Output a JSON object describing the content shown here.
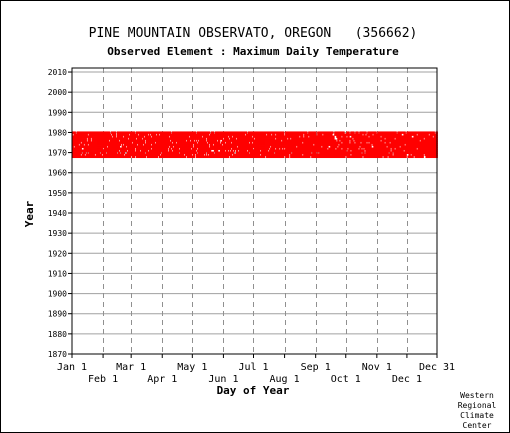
{
  "chart_data": {
    "type": "scatter",
    "title": "PINE MOUNTAIN OBSERVATO, OREGON   (356662)",
    "subtitle": "Observed Element : Maximum Daily Temperature",
    "xlabel": "Day of Year",
    "ylabel": "Year",
    "x_tick_labels_row1": [
      "Jan 1",
      "Mar 1",
      "May 1",
      "Jul 1",
      "Sep 1",
      "Nov 1",
      "Dec 31"
    ],
    "x_tick_labels_row2": [
      "Feb 1",
      "Apr 1",
      "Jun 1",
      "Aug 1",
      "Oct 1",
      "Dec 1"
    ],
    "x_tick_days_row1": [
      1,
      60,
      121,
      182,
      244,
      305,
      365
    ],
    "x_tick_days_row2": [
      32,
      91,
      152,
      213,
      274,
      335
    ],
    "xlim": [
      1,
      365
    ],
    "ylim": [
      1870,
      2012
    ],
    "y_ticks": [
      1870,
      1880,
      1890,
      1900,
      1910,
      1920,
      1930,
      1940,
      1950,
      1960,
      1970,
      1980,
      1990,
      2000,
      2010
    ],
    "grid": true,
    "marker_color": "#ff0000",
    "data_coverage": {
      "description_years": "observations recorded nearly every day for these years",
      "year_start": 1968,
      "year_end": 1980,
      "day_start": 1,
      "day_end": 365
    }
  },
  "credit": [
    "Western",
    "Regional",
    "Climate",
    "Center"
  ]
}
